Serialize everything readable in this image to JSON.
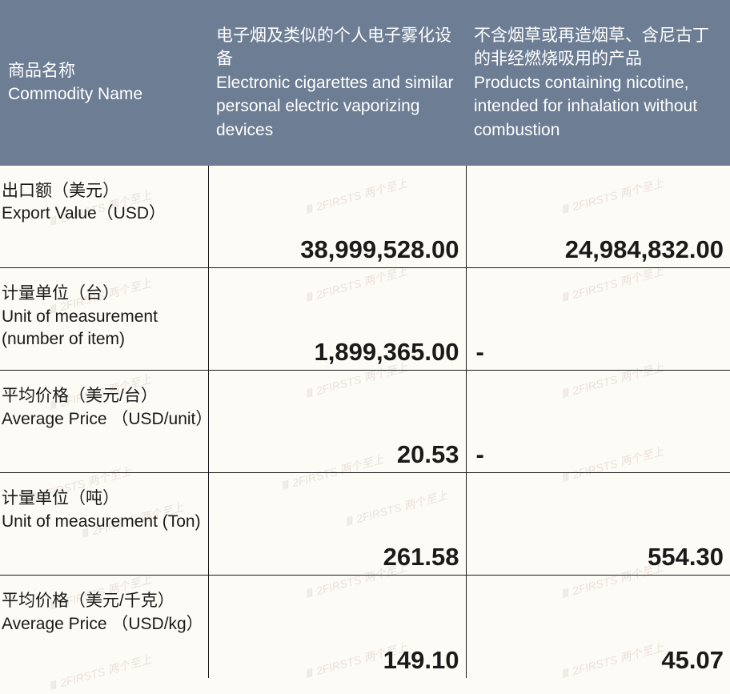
{
  "colors": {
    "header_bg": "#6d7e94",
    "header_text": "#ffffff",
    "body_bg": "#fdfbf5",
    "cell_text": "#1a1a1a",
    "border": "#1a1a1a",
    "watermark": "#d9c7c0"
  },
  "watermark_text": "2FIRSTS 两个至上",
  "table": {
    "header": {
      "col1_cn": "商品名称",
      "col1_en": "Commodity Name",
      "col2_cn": "电子烟及类似的个人电子雾化设备",
      "col2_en": "Electronic cigarettes and similar personal electric vaporizing devices",
      "col3_cn": "不含烟草或再造烟草、含尼古丁的非经燃烧吸用的产品",
      "col3_en": "Products containing nicotine, intended for inhalation without combustion"
    },
    "rows": [
      {
        "label_cn": "出口额（美元）",
        "label_en": " Export Value（USD）",
        "val1": "38,999,528.00",
        "val2": "24,984,832.00"
      },
      {
        "label_cn": "计量单位（台）",
        "label_en": "Unit of measurement (number of item)",
        "val1": "1,899,365.00",
        "val2": "-"
      },
      {
        "label_cn": "平均价格（美元/台）",
        "label_en": "Average Price （USD/unit）",
        "val1": "20.53",
        "val2": "-"
      },
      {
        "label_cn": "计量单位（吨）",
        "label_en": "Unit of measurement (Ton)",
        "val1": "261.58",
        "val2": "554.30"
      },
      {
        "label_cn": "平均价格（美元/千克）",
        "label_en": "Average Price （USD/kg）",
        "val1": "149.10",
        "val2": "45.07"
      }
    ]
  }
}
